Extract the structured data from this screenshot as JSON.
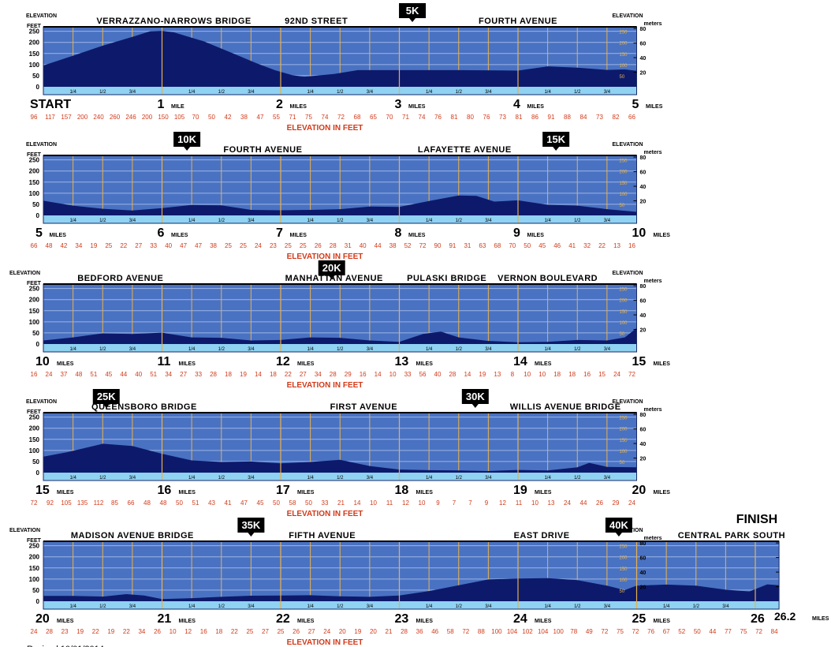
{
  "labels": {
    "elevation": "ELEVATION",
    "feet": "FEET",
    "meters": "meters",
    "elevation_in_feet": "ELEVATION IN FEET",
    "miles": "MILES",
    "mile": "MILE",
    "start": "START",
    "finish": "FINISH",
    "final_mile": "26.2",
    "revised": "Revised 10/01/2014"
  },
  "chart_data": [
    {
      "type": "area",
      "panel": 1,
      "mile_range": [
        0,
        5
      ],
      "ft_ticks": [
        0,
        50,
        100,
        150,
        200,
        250
      ],
      "m_ticks": [
        20,
        40,
        60,
        80
      ],
      "fraction_labels": [
        "1/4",
        "1/2",
        "3/4"
      ],
      "mile_labels": [
        {
          "mile": 0,
          "text": "START",
          "unit": ""
        },
        {
          "mile": 1,
          "text": "1",
          "unit": "MILE"
        },
        {
          "mile": 2,
          "text": "2",
          "unit": "MILES"
        },
        {
          "mile": 3,
          "text": "3",
          "unit": "MILES"
        },
        {
          "mile": 4,
          "text": "4",
          "unit": "MILES"
        },
        {
          "mile": 5,
          "text": "5",
          "unit": "MILES"
        }
      ],
      "street_labels": [
        {
          "text": "VERRAZZANO-NARROWS BRIDGE",
          "mile": 1.1
        },
        {
          "text": "92ND STREET",
          "mile": 2.3
        },
        {
          "text": "FOURTH AVENUE",
          "mile": 4.0
        }
      ],
      "km_markers": [
        {
          "text": "5K",
          "mile": 3.11
        }
      ],
      "elevation_readings": [
        96,
        117,
        157,
        200,
        240,
        260,
        246,
        200,
        150,
        105,
        70,
        50,
        42,
        38,
        47,
        55,
        71,
        75,
        74,
        72,
        68,
        65,
        70,
        71,
        74,
        76,
        81,
        80,
        76,
        73,
        81,
        86,
        91,
        88,
        84,
        73,
        82,
        66
      ],
      "profile": [
        [
          0,
          96
        ],
        [
          0.25,
          140
        ],
        [
          0.5,
          185
        ],
        [
          0.75,
          225
        ],
        [
          0.9,
          250
        ],
        [
          1.0,
          252
        ],
        [
          1.1,
          245
        ],
        [
          1.35,
          205
        ],
        [
          1.6,
          150
        ],
        [
          1.8,
          105
        ],
        [
          1.95,
          75
        ],
        [
          2.1,
          52
        ],
        [
          2.2,
          45
        ],
        [
          2.45,
          58
        ],
        [
          2.65,
          75
        ],
        [
          3.0,
          75
        ],
        [
          3.5,
          75
        ],
        [
          3.85,
          74
        ],
        [
          4.0,
          73
        ],
        [
          4.25,
          92
        ],
        [
          4.5,
          86
        ],
        [
          4.75,
          76
        ],
        [
          4.9,
          78
        ],
        [
          5.0,
          72
        ]
      ]
    },
    {
      "type": "area",
      "panel": 2,
      "mile_range": [
        5,
        10
      ],
      "ft_ticks": [
        0,
        50,
        100,
        150,
        200,
        250
      ],
      "m_ticks": [
        20,
        40,
        60,
        80
      ],
      "fraction_labels": [
        "1/4",
        "1/2",
        "3/4"
      ],
      "mile_labels": [
        {
          "mile": 5,
          "text": "5",
          "unit": "MILES"
        },
        {
          "mile": 6,
          "text": "6",
          "unit": "MILES"
        },
        {
          "mile": 7,
          "text": "7",
          "unit": "MILES"
        },
        {
          "mile": 8,
          "text": "8",
          "unit": "MILES"
        },
        {
          "mile": 9,
          "text": "9",
          "unit": "MILES"
        },
        {
          "mile": 10,
          "text": "10",
          "unit": "MILES"
        }
      ],
      "street_labels": [
        {
          "text": "FOURTH AVENUE",
          "mile": 6.85
        },
        {
          "text": "LAFAYETTE AVENUE",
          "mile": 8.55
        }
      ],
      "km_markers": [
        {
          "text": "10K",
          "mile": 6.21
        },
        {
          "text": "15K",
          "mile": 9.32
        }
      ],
      "elevation_readings": [
        66,
        48,
        42,
        34,
        19,
        25,
        22,
        27,
        33,
        40,
        47,
        47,
        38,
        25,
        25,
        24,
        23,
        25,
        25,
        26,
        28,
        31,
        40,
        44,
        38,
        52,
        72,
        90,
        91,
        31,
        63,
        68,
        70,
        50,
        45,
        46,
        41,
        32,
        22,
        13,
        16
      ],
      "profile": [
        [
          5,
          66
        ],
        [
          5.25,
          44
        ],
        [
          5.5,
          30
        ],
        [
          5.75,
          22
        ],
        [
          6.0,
          33
        ],
        [
          6.25,
          47
        ],
        [
          6.5,
          45
        ],
        [
          6.75,
          25
        ],
        [
          7.0,
          23
        ],
        [
          7.25,
          25
        ],
        [
          7.5,
          28
        ],
        [
          7.75,
          40
        ],
        [
          8.0,
          38
        ],
        [
          8.25,
          65
        ],
        [
          8.5,
          90
        ],
        [
          8.65,
          88
        ],
        [
          8.8,
          62
        ],
        [
          9.0,
          68
        ],
        [
          9.25,
          48
        ],
        [
          9.5,
          44
        ],
        [
          9.75,
          28
        ],
        [
          10.0,
          16
        ]
      ]
    },
    {
      "type": "area",
      "panel": 3,
      "mile_range": [
        10,
        15
      ],
      "ft_ticks": [
        0,
        50,
        100,
        150,
        200,
        250
      ],
      "m_ticks": [
        20,
        40,
        60,
        80
      ],
      "fraction_labels": [
        "1/4",
        "1/2",
        "3/4"
      ],
      "mile_labels": [
        {
          "mile": 10,
          "text": "10",
          "unit": "MILES"
        },
        {
          "mile": 11,
          "text": "11",
          "unit": "MILES"
        },
        {
          "mile": 12,
          "text": "12",
          "unit": "MILES"
        },
        {
          "mile": 13,
          "text": "13",
          "unit": "MILES"
        },
        {
          "mile": 14,
          "text": "14",
          "unit": "MILES"
        },
        {
          "mile": 15,
          "text": "15",
          "unit": "MILES"
        }
      ],
      "street_labels": [
        {
          "text": "BEDFORD AVENUE",
          "mile": 10.65
        },
        {
          "text": "MANHATTAN AVENUE",
          "mile": 12.45
        },
        {
          "text": "PULASKI BRIDGE",
          "mile": 13.4
        },
        {
          "text": "VERNON BOULEVARD",
          "mile": 14.25
        }
      ],
      "km_markers": [
        {
          "text": "20K",
          "mile": 12.43
        }
      ],
      "elevation_readings": [
        16,
        24,
        37,
        48,
        51,
        45,
        44,
        40,
        51,
        34,
        27,
        33,
        28,
        18,
        19,
        14,
        18,
        22,
        27,
        34,
        28,
        29,
        16,
        14,
        10,
        33,
        56,
        40,
        28,
        14,
        19,
        13,
        8,
        10,
        10,
        18,
        18,
        16,
        15,
        24,
        72
      ],
      "profile": [
        [
          10,
          16
        ],
        [
          10.25,
          30
        ],
        [
          10.5,
          48
        ],
        [
          10.75,
          45
        ],
        [
          11.0,
          51
        ],
        [
          11.25,
          30
        ],
        [
          11.5,
          28
        ],
        [
          11.75,
          16
        ],
        [
          12.0,
          18
        ],
        [
          12.25,
          30
        ],
        [
          12.5,
          28
        ],
        [
          12.75,
          16
        ],
        [
          13.0,
          10
        ],
        [
          13.2,
          45
        ],
        [
          13.35,
          56
        ],
        [
          13.5,
          30
        ],
        [
          13.75,
          14
        ],
        [
          14.0,
          8
        ],
        [
          14.25,
          10
        ],
        [
          14.5,
          18
        ],
        [
          14.75,
          16
        ],
        [
          14.9,
          30
        ],
        [
          15.0,
          72
        ]
      ]
    },
    {
      "type": "area",
      "panel": 4,
      "mile_range": [
        15,
        20
      ],
      "ft_ticks": [
        0,
        50,
        100,
        150,
        200,
        250
      ],
      "m_ticks": [
        20,
        40,
        60,
        80
      ],
      "fraction_labels": [
        "1/4",
        "1/2",
        "3/4"
      ],
      "mile_labels": [
        {
          "mile": 15,
          "text": "15",
          "unit": "MILES"
        },
        {
          "mile": 16,
          "text": "16",
          "unit": "MILES"
        },
        {
          "mile": 17,
          "text": "17",
          "unit": "MILES"
        },
        {
          "mile": 18,
          "text": "18",
          "unit": "MILES"
        },
        {
          "mile": 19,
          "text": "19",
          "unit": "MILES"
        },
        {
          "mile": 20,
          "text": "20",
          "unit": "MILES"
        }
      ],
      "street_labels": [
        {
          "text": "QUEENSBORO BRIDGE",
          "mile": 15.85
        },
        {
          "text": "FIRST AVENUE",
          "mile": 17.7
        },
        {
          "text": "WILLIS AVENUE BRIDGE",
          "mile": 19.4
        }
      ],
      "km_markers": [
        {
          "text": "25K",
          "mile": 15.53
        },
        {
          "text": "30K",
          "mile": 18.64
        }
      ],
      "elevation_readings": [
        72,
        92,
        105,
        135,
        112,
        85,
        66,
        48,
        48,
        50,
        51,
        43,
        41,
        47,
        45,
        50,
        58,
        50,
        33,
        21,
        14,
        10,
        11,
        12,
        10,
        9,
        7,
        7,
        9,
        12,
        11,
        10,
        13,
        24,
        44,
        26,
        29,
        24
      ],
      "profile": [
        [
          15,
          72
        ],
        [
          15.2,
          92
        ],
        [
          15.5,
          130
        ],
        [
          15.75,
          120
        ],
        [
          16.0,
          85
        ],
        [
          16.25,
          55
        ],
        [
          16.5,
          48
        ],
        [
          16.75,
          50
        ],
        [
          17.0,
          42
        ],
        [
          17.25,
          48
        ],
        [
          17.5,
          58
        ],
        [
          17.75,
          30
        ],
        [
          18.0,
          14
        ],
        [
          18.25,
          11
        ],
        [
          18.5,
          10
        ],
        [
          18.75,
          7
        ],
        [
          19.0,
          12
        ],
        [
          19.25,
          10
        ],
        [
          19.5,
          24
        ],
        [
          19.6,
          44
        ],
        [
          19.75,
          26
        ],
        [
          20.0,
          24
        ]
      ]
    },
    {
      "type": "area",
      "panel": 5,
      "mile_range": [
        20,
        26.2
      ],
      "ft_ticks": [
        0,
        50,
        100,
        150,
        200,
        250
      ],
      "m_ticks": [
        20,
        40,
        60,
        80
      ],
      "fraction_labels": [
        "1/4",
        "1/2",
        "3/4"
      ],
      "mile_labels": [
        {
          "mile": 20,
          "text": "20",
          "unit": "MILES"
        },
        {
          "mile": 21,
          "text": "21",
          "unit": "MILES"
        },
        {
          "mile": 22,
          "text": "22",
          "unit": "MILES"
        },
        {
          "mile": 23,
          "text": "23",
          "unit": "MILES"
        },
        {
          "mile": 24,
          "text": "24",
          "unit": "MILES"
        },
        {
          "mile": 25,
          "text": "25",
          "unit": "MILES"
        },
        {
          "mile": 26,
          "text": "26",
          "unit": ""
        }
      ],
      "street_labels": [
        {
          "text": "MADISON AVENUE BRIDGE",
          "mile": 20.75
        },
        {
          "text": "FIFTH AVENUE",
          "mile": 22.35
        },
        {
          "text": "EAST DRIVE",
          "mile": 24.2
        },
        {
          "text": "CENTRAL PARK SOUTH",
          "mile": 25.8
        }
      ],
      "km_markers": [
        {
          "text": "35K",
          "mile": 21.75
        },
        {
          "text": "40K",
          "mile": 24.85
        }
      ],
      "elevation_readings": [
        24,
        28,
        23,
        19,
        22,
        19,
        22,
        34,
        26,
        10,
        12,
        16,
        18,
        22,
        25,
        27,
        25,
        26,
        27,
        24,
        20,
        19,
        20,
        21,
        28,
        36,
        46,
        58,
        72,
        88,
        100,
        104,
        102,
        104,
        100,
        78,
        49,
        72,
        75,
        72,
        76,
        67,
        52,
        50,
        44,
        77,
        75,
        72,
        84
      ],
      "profile": [
        [
          20,
          24
        ],
        [
          20.25,
          24
        ],
        [
          20.5,
          21
        ],
        [
          20.7,
          32
        ],
        [
          20.85,
          26
        ],
        [
          21.0,
          10
        ],
        [
          21.25,
          14
        ],
        [
          21.5,
          20
        ],
        [
          21.75,
          25
        ],
        [
          22.0,
          26
        ],
        [
          22.25,
          27
        ],
        [
          22.5,
          22
        ],
        [
          22.75,
          20
        ],
        [
          23.0,
          26
        ],
        [
          23.25,
          46
        ],
        [
          23.5,
          72
        ],
        [
          23.75,
          98
        ],
        [
          24.0,
          102
        ],
        [
          24.25,
          104
        ],
        [
          24.5,
          95
        ],
        [
          24.75,
          70
        ],
        [
          24.9,
          50
        ],
        [
          25.0,
          70
        ],
        [
          25.25,
          75
        ],
        [
          25.5,
          70
        ],
        [
          25.75,
          52
        ],
        [
          25.95,
          44
        ],
        [
          26.1,
          76
        ],
        [
          26.2,
          72
        ]
      ]
    }
  ]
}
